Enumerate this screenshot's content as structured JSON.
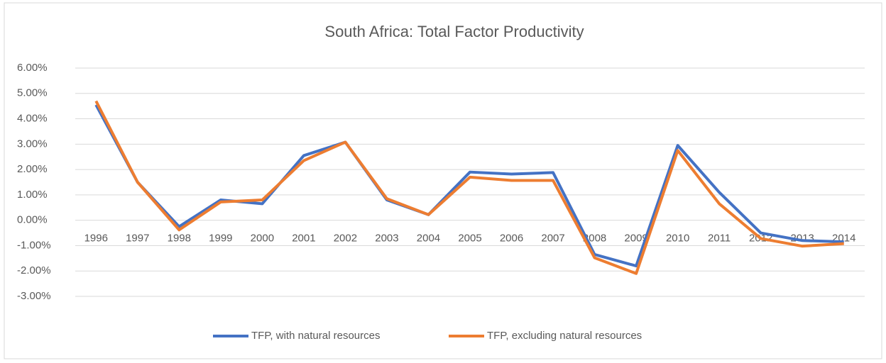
{
  "chart_data": {
    "type": "line",
    "title": "South Africa: Total Factor Productivity",
    "categories": [
      "1996",
      "1997",
      "1998",
      "1999",
      "2000",
      "2001",
      "2002",
      "2003",
      "2004",
      "2005",
      "2006",
      "2007",
      "2008",
      "2009",
      "2010",
      "2011",
      "2012",
      "2013",
      "2014"
    ],
    "series": [
      {
        "name": "TFP, with natural resources",
        "color": "#4472c4",
        "values": [
          4.55,
          1.5,
          -0.25,
          0.8,
          0.65,
          2.55,
          3.08,
          0.8,
          0.22,
          1.9,
          1.82,
          1.88,
          -1.35,
          -1.8,
          2.95,
          1.1,
          -0.5,
          -0.8,
          -0.85
        ]
      },
      {
        "name": "TFP, excluding natural resources",
        "color": "#ed7d31",
        "values": [
          4.7,
          1.5,
          -0.38,
          0.72,
          0.8,
          2.35,
          3.08,
          0.85,
          0.22,
          1.7,
          1.57,
          1.57,
          -1.48,
          -2.1,
          2.75,
          0.65,
          -0.72,
          -1.02,
          -0.92
        ]
      }
    ],
    "ylim": [
      -3,
      6
    ],
    "yticks": [
      {
        "value": 6,
        "label": "6.00%"
      },
      {
        "value": 5,
        "label": "5.00%"
      },
      {
        "value": 4,
        "label": "4.00%"
      },
      {
        "value": 3,
        "label": "3.00%"
      },
      {
        "value": 2,
        "label": "2.00%"
      },
      {
        "value": 1,
        "label": "1.00%"
      },
      {
        "value": 0,
        "label": "0.00%"
      },
      {
        "value": -1,
        "label": "-1.00%"
      },
      {
        "value": -2,
        "label": "-2.00%"
      },
      {
        "value": -3,
        "label": "-3.00%"
      }
    ],
    "grid": true,
    "legend": "bottom"
  }
}
